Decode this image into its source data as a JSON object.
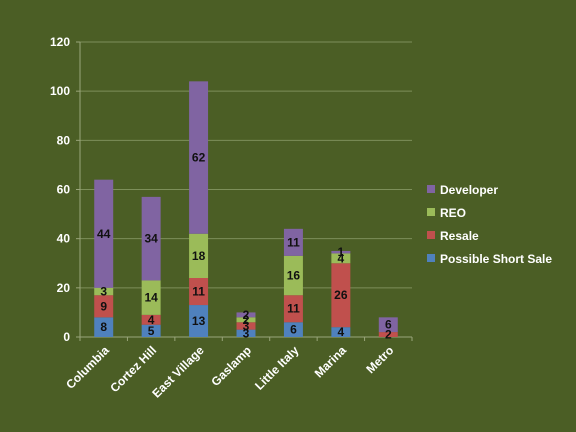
{
  "chart_data": {
    "type": "bar",
    "stacked": true,
    "title": "",
    "xlabel": "",
    "ylabel": "",
    "categories": [
      "Columbia",
      "Cortez Hill",
      "East Village",
      "Gaslamp",
      "Little Italy",
      "Marina",
      "Metro"
    ],
    "ylim": [
      0,
      120
    ],
    "yticks": [
      "0",
      "20",
      "40",
      "60",
      "80",
      "100",
      "120"
    ],
    "grid": true,
    "legend_position": "right",
    "series": [
      {
        "name": "Possible Short Sale",
        "color": "#4f81bd",
        "values": [
          8,
          5,
          13,
          3,
          6,
          4,
          0
        ],
        "labels": [
          "8",
          "5",
          "13",
          "3",
          "6",
          "4",
          ""
        ]
      },
      {
        "name": "Resale",
        "color": "#c0504d",
        "values": [
          9,
          4,
          11,
          3,
          11,
          26,
          2
        ],
        "labels": [
          "9",
          "4",
          "11",
          "3",
          "11",
          "26",
          "2"
        ]
      },
      {
        "name": "REO",
        "color": "#9bbb59",
        "values": [
          3,
          14,
          18,
          2,
          16,
          4,
          0
        ],
        "labels": [
          "3",
          "14",
          "18",
          "2",
          "16",
          "4",
          ""
        ]
      },
      {
        "name": "Developer",
        "color": "#8064a2",
        "values": [
          44,
          34,
          62,
          2,
          11,
          1,
          6
        ],
        "labels": [
          "44",
          "34",
          "62",
          "2",
          "11",
          "1",
          "6"
        ]
      }
    ]
  }
}
